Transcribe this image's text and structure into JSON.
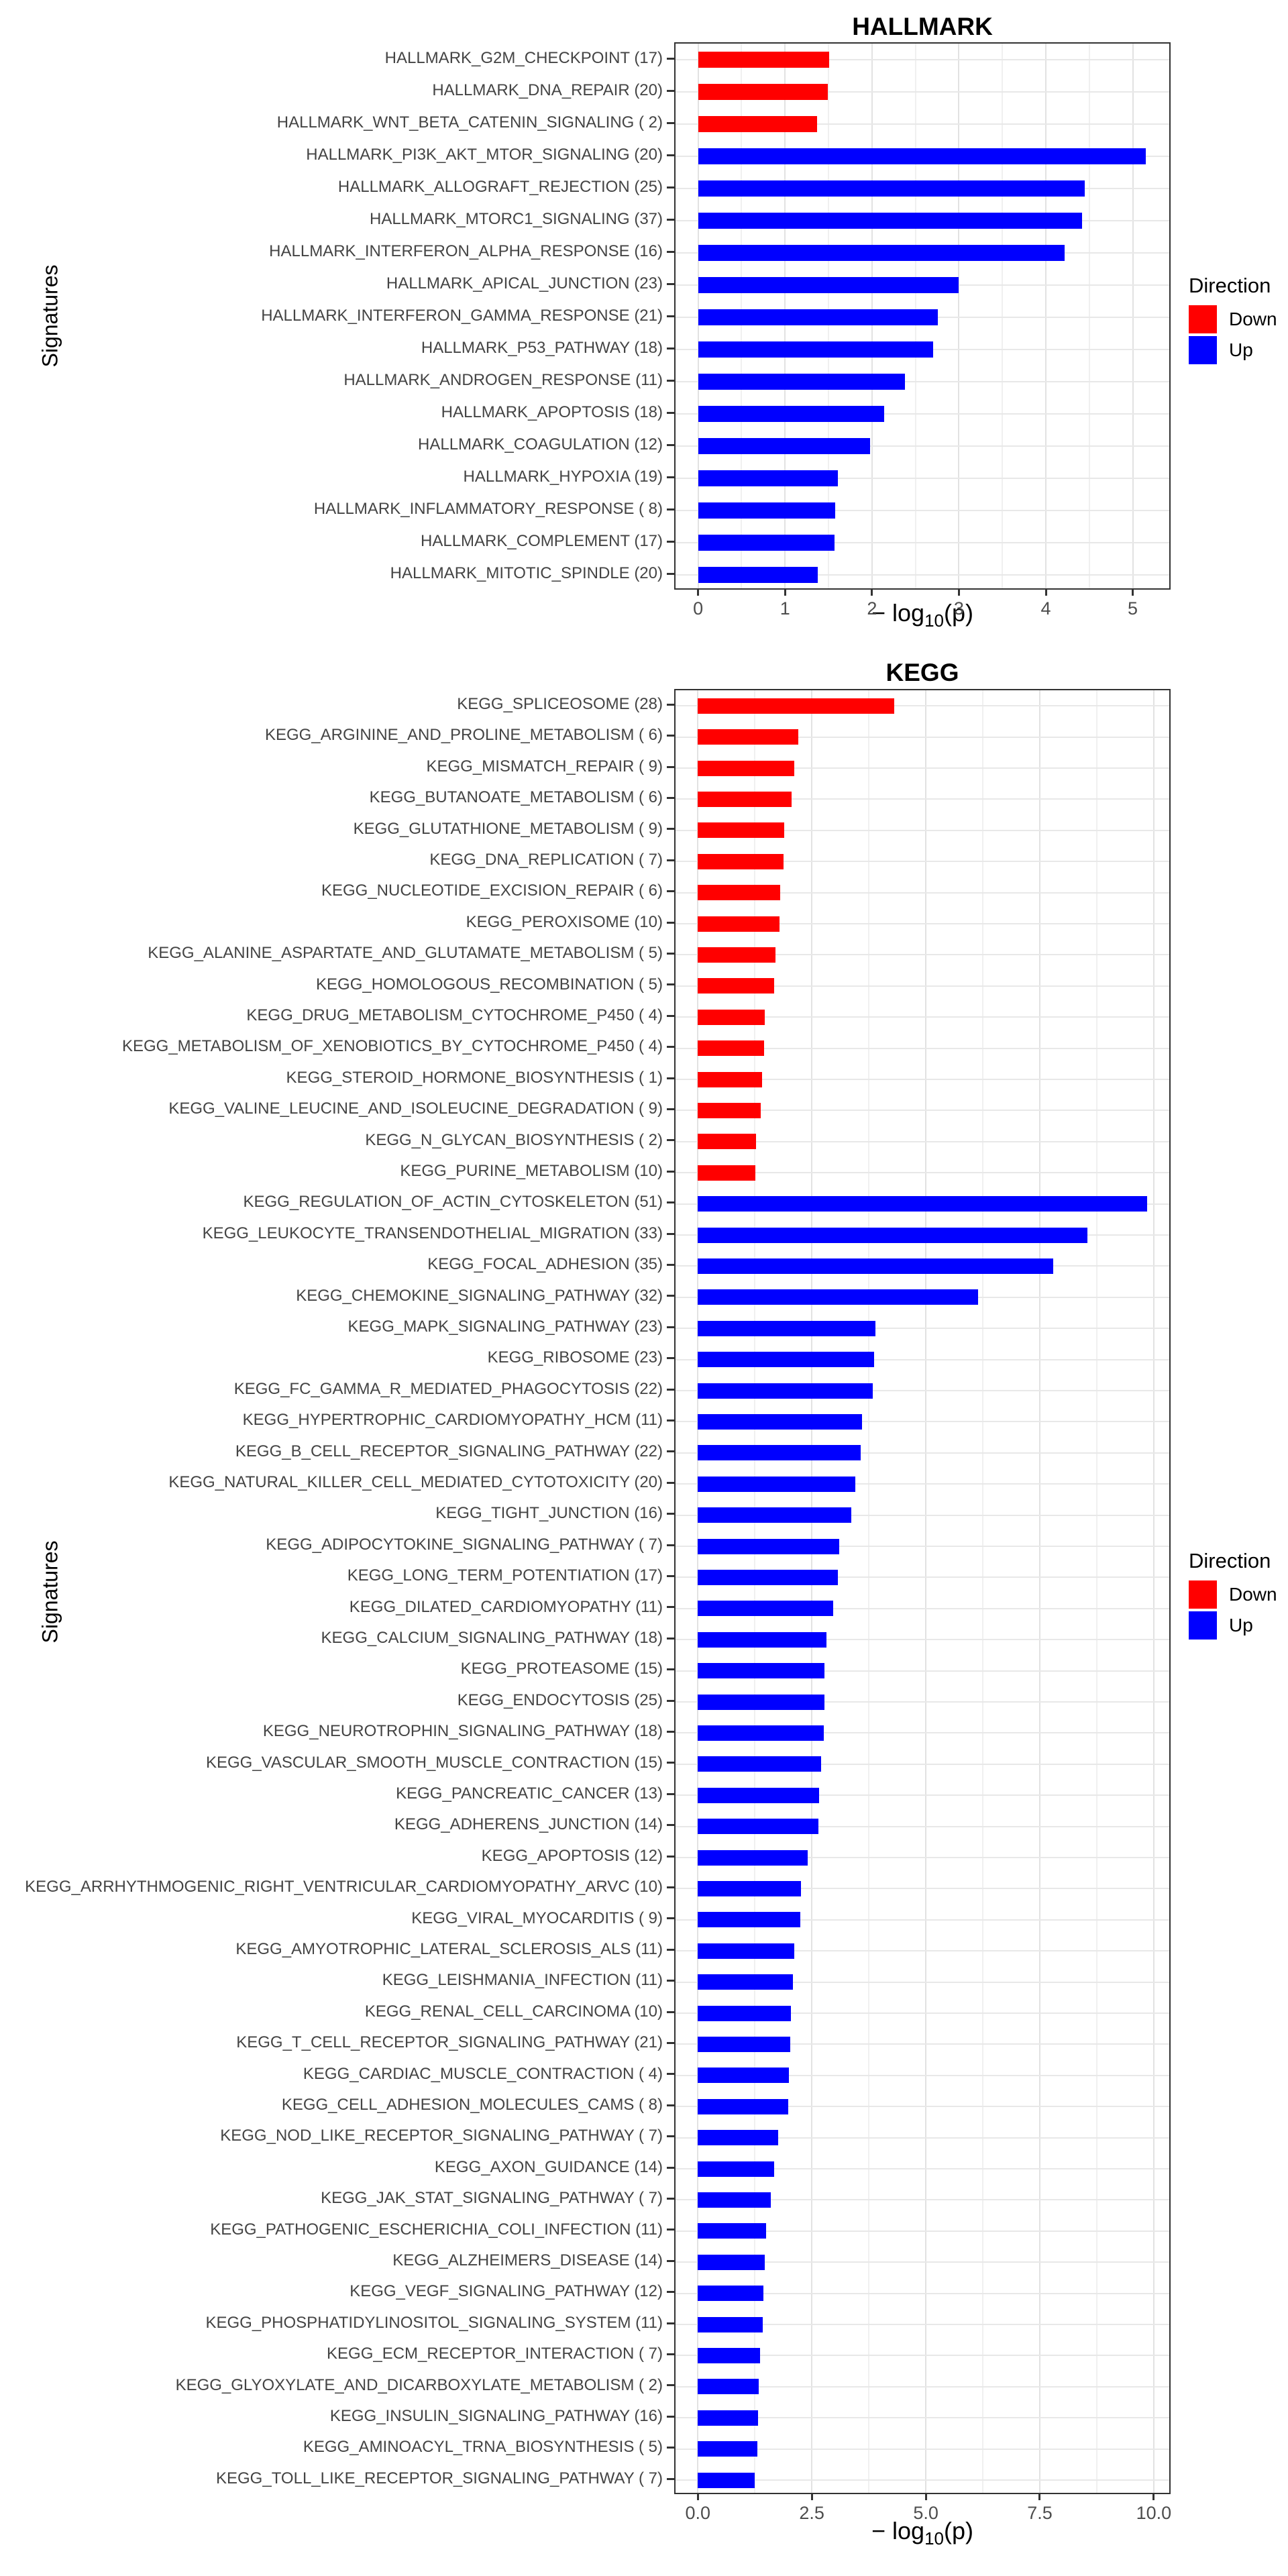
{
  "chart_data": [
    {
      "type": "bar",
      "orientation": "horizontal",
      "title": "HALLMARK",
      "ylabel": "Signatures",
      "xlabel": "-log10(p)",
      "xlabel_parts": {
        "pre": "− log",
        "sub": "10",
        "post": "(p)"
      },
      "xlim": [
        -0.26,
        5.42
      ],
      "grid": true,
      "x_ticks": [
        {
          "v": 0,
          "label": "0"
        },
        {
          "v": 1,
          "label": "1"
        },
        {
          "v": 2,
          "label": "2"
        },
        {
          "v": 3,
          "label": "3"
        },
        {
          "v": 4,
          "label": "4"
        },
        {
          "v": 5,
          "label": "5"
        }
      ],
      "x_minor": [
        0.5,
        1.5,
        2.5,
        3.5,
        4.5
      ],
      "legend": {
        "title": "Direction",
        "position": "right",
        "items": [
          {
            "label": "Down",
            "color": "#FF0000"
          },
          {
            "label": "Up",
            "color": "#0000FF"
          }
        ]
      },
      "bars": [
        {
          "label": "HALLMARK_G2M_CHECKPOINT (17)",
          "value": 1.51,
          "direction": "Down"
        },
        {
          "label": "HALLMARK_DNA_REPAIR (20)",
          "value": 1.49,
          "direction": "Down"
        },
        {
          "label": "HALLMARK_WNT_BETA_CATENIN_SIGNALING ( 2)",
          "value": 1.37,
          "direction": "Down"
        },
        {
          "label": "HALLMARK_PI3K_AKT_MTOR_SIGNALING (20)",
          "value": 5.15,
          "direction": "Up"
        },
        {
          "label": "HALLMARK_ALLOGRAFT_REJECTION (25)",
          "value": 4.45,
          "direction": "Up"
        },
        {
          "label": "HALLMARK_MTORC1_SIGNALING (37)",
          "value": 4.42,
          "direction": "Up"
        },
        {
          "label": "HALLMARK_INTERFERON_ALPHA_RESPONSE (16)",
          "value": 4.22,
          "direction": "Up"
        },
        {
          "label": "HALLMARK_APICAL_JUNCTION (23)",
          "value": 3.0,
          "direction": "Up"
        },
        {
          "label": "HALLMARK_INTERFERON_GAMMA_RESPONSE (21)",
          "value": 2.76,
          "direction": "Up"
        },
        {
          "label": "HALLMARK_P53_PATHWAY (18)",
          "value": 2.7,
          "direction": "Up"
        },
        {
          "label": "HALLMARK_ANDROGEN_RESPONSE (11)",
          "value": 2.38,
          "direction": "Up"
        },
        {
          "label": "HALLMARK_APOPTOSIS (18)",
          "value": 2.14,
          "direction": "Up"
        },
        {
          "label": "HALLMARK_COAGULATION (12)",
          "value": 1.98,
          "direction": "Up"
        },
        {
          "label": "HALLMARK_HYPOXIA (19)",
          "value": 1.61,
          "direction": "Up"
        },
        {
          "label": "HALLMARK_INFLAMMATORY_RESPONSE ( 8)",
          "value": 1.58,
          "direction": "Up"
        },
        {
          "label": "HALLMARK_COMPLEMENT (17)",
          "value": 1.57,
          "direction": "Up"
        },
        {
          "label": "HALLMARK_MITOTIC_SPINDLE (20)",
          "value": 1.38,
          "direction": "Up"
        }
      ]
    },
    {
      "type": "bar",
      "orientation": "horizontal",
      "title": "KEGG",
      "ylabel": "Signatures",
      "xlabel": "-log10(p)",
      "xlabel_parts": {
        "pre": "− log",
        "sub": "10",
        "post": "(p)"
      },
      "xlim": [
        -0.49,
        10.34
      ],
      "grid": true,
      "x_ticks": [
        {
          "v": 0,
          "label": "0.0"
        },
        {
          "v": 2.5,
          "label": "2.5"
        },
        {
          "v": 5,
          "label": "5.0"
        },
        {
          "v": 7.5,
          "label": "7.5"
        },
        {
          "v": 10,
          "label": "10.0"
        }
      ],
      "x_minor": [
        1.25,
        3.75,
        6.25,
        8.75
      ],
      "legend": {
        "title": "Direction",
        "position": "right",
        "items": [
          {
            "label": "Down",
            "color": "#FF0000"
          },
          {
            "label": "Up",
            "color": "#0000FF"
          }
        ]
      },
      "bars": [
        {
          "label": "KEGG_SPLICEOSOME (28)",
          "value": 4.3,
          "direction": "Down"
        },
        {
          "label": "KEGG_ARGININE_AND_PROLINE_METABOLISM ( 6)",
          "value": 2.2,
          "direction": "Down"
        },
        {
          "label": "KEGG_MISMATCH_REPAIR ( 9)",
          "value": 2.12,
          "direction": "Down"
        },
        {
          "label": "KEGG_BUTANOATE_METABOLISM ( 6)",
          "value": 2.06,
          "direction": "Down"
        },
        {
          "label": "KEGG_GLUTATHIONE_METABOLISM ( 9)",
          "value": 1.9,
          "direction": "Down"
        },
        {
          "label": "KEGG_DNA_REPLICATION ( 7)",
          "value": 1.88,
          "direction": "Down"
        },
        {
          "label": "KEGG_NUCLEOTIDE_EXCISION_REPAIR ( 6)",
          "value": 1.8,
          "direction": "Down"
        },
        {
          "label": "KEGG_PEROXISOME (10)",
          "value": 1.79,
          "direction": "Down"
        },
        {
          "label": "KEGG_ALANINE_ASPARTATE_AND_GLUTAMATE_METABOLISM ( 5)",
          "value": 1.71,
          "direction": "Down"
        },
        {
          "label": "KEGG_HOMOLOGOUS_RECOMBINATION ( 5)",
          "value": 1.68,
          "direction": "Down"
        },
        {
          "label": "KEGG_DRUG_METABOLISM_CYTOCHROME_P450 ( 4)",
          "value": 1.46,
          "direction": "Down"
        },
        {
          "label": "KEGG_METABOLISM_OF_XENOBIOTICS_BY_CYTOCHROME_P450 ( 4)",
          "value": 1.45,
          "direction": "Down"
        },
        {
          "label": "KEGG_STEROID_HORMONE_BIOSYNTHESIS ( 1)",
          "value": 1.41,
          "direction": "Down"
        },
        {
          "label": "KEGG_VALINE_LEUCINE_AND_ISOLEUCINE_DEGRADATION ( 9)",
          "value": 1.38,
          "direction": "Down"
        },
        {
          "label": "KEGG_N_GLYCAN_BIOSYNTHESIS ( 2)",
          "value": 1.28,
          "direction": "Down"
        },
        {
          "label": "KEGG_PURINE_METABOLISM (10)",
          "value": 1.26,
          "direction": "Down"
        },
        {
          "label": "KEGG_REGULATION_OF_ACTIN_CYTOSKELETON (51)",
          "value": 9.85,
          "direction": "Up"
        },
        {
          "label": "KEGG_LEUKOCYTE_TRANSENDOTHELIAL_MIGRATION (33)",
          "value": 8.55,
          "direction": "Up"
        },
        {
          "label": "KEGG_FOCAL_ADHESION (35)",
          "value": 7.8,
          "direction": "Up"
        },
        {
          "label": "KEGG_CHEMOKINE_SIGNALING_PATHWAY (32)",
          "value": 6.15,
          "direction": "Up"
        },
        {
          "label": "KEGG_MAPK_SIGNALING_PATHWAY (23)",
          "value": 3.9,
          "direction": "Up"
        },
        {
          "label": "KEGG_RIBOSOME (23)",
          "value": 3.86,
          "direction": "Up"
        },
        {
          "label": "KEGG_FC_GAMMA_R_MEDIATED_PHAGOCYTOSIS (22)",
          "value": 3.83,
          "direction": "Up"
        },
        {
          "label": "KEGG_HYPERTROPHIC_CARDIOMYOPATHY_HCM (11)",
          "value": 3.6,
          "direction": "Up"
        },
        {
          "label": "KEGG_B_CELL_RECEPTOR_SIGNALING_PATHWAY (22)",
          "value": 3.57,
          "direction": "Up"
        },
        {
          "label": "KEGG_NATURAL_KILLER_CELL_MEDIATED_CYTOTOXICITY (20)",
          "value": 3.45,
          "direction": "Up"
        },
        {
          "label": "KEGG_TIGHT_JUNCTION (16)",
          "value": 3.36,
          "direction": "Up"
        },
        {
          "label": "KEGG_ADIPOCYTOKINE_SIGNALING_PATHWAY ( 7)",
          "value": 3.1,
          "direction": "Up"
        },
        {
          "label": "KEGG_LONG_TERM_POTENTIATION (17)",
          "value": 3.07,
          "direction": "Up"
        },
        {
          "label": "KEGG_DILATED_CARDIOMYOPATHY (11)",
          "value": 2.97,
          "direction": "Up"
        },
        {
          "label": "KEGG_CALCIUM_SIGNALING_PATHWAY (18)",
          "value": 2.82,
          "direction": "Up"
        },
        {
          "label": "KEGG_PROTEASOME (15)",
          "value": 2.78,
          "direction": "Up"
        },
        {
          "label": "KEGG_ENDOCYTOSIS (25)",
          "value": 2.77,
          "direction": "Up"
        },
        {
          "label": "KEGG_NEUROTROPHIN_SIGNALING_PATHWAY (18)",
          "value": 2.76,
          "direction": "Up"
        },
        {
          "label": "KEGG_VASCULAR_SMOOTH_MUSCLE_CONTRACTION (15)",
          "value": 2.7,
          "direction": "Up"
        },
        {
          "label": "KEGG_PANCREATIC_CANCER (13)",
          "value": 2.66,
          "direction": "Up"
        },
        {
          "label": "KEGG_ADHERENS_JUNCTION (14)",
          "value": 2.64,
          "direction": "Up"
        },
        {
          "label": "KEGG_APOPTOSIS (12)",
          "value": 2.41,
          "direction": "Up"
        },
        {
          "label": "KEGG_ARRHYTHMOGENIC_RIGHT_VENTRICULAR_CARDIOMYOPATHY_ARVC (10)",
          "value": 2.26,
          "direction": "Up"
        },
        {
          "label": "KEGG_VIRAL_MYOCARDITIS ( 9)",
          "value": 2.25,
          "direction": "Up"
        },
        {
          "label": "KEGG_AMYOTROPHIC_LATERAL_SCLEROSIS_ALS (11)",
          "value": 2.12,
          "direction": "Up"
        },
        {
          "label": "KEGG_LEISHMANIA_INFECTION (11)",
          "value": 2.09,
          "direction": "Up"
        },
        {
          "label": "KEGG_RENAL_CELL_CARCINOMA (10)",
          "value": 2.04,
          "direction": "Up"
        },
        {
          "label": "KEGG_T_CELL_RECEPTOR_SIGNALING_PATHWAY (21)",
          "value": 2.02,
          "direction": "Up"
        },
        {
          "label": "KEGG_CARDIAC_MUSCLE_CONTRACTION ( 4)",
          "value": 2.0,
          "direction": "Up"
        },
        {
          "label": "KEGG_CELL_ADHESION_MOLECULES_CAMS ( 8)",
          "value": 1.98,
          "direction": "Up"
        },
        {
          "label": "KEGG_NOD_LIKE_RECEPTOR_SIGNALING_PATHWAY ( 7)",
          "value": 1.76,
          "direction": "Up"
        },
        {
          "label": "KEGG_AXON_GUIDANCE (14)",
          "value": 1.67,
          "direction": "Up"
        },
        {
          "label": "KEGG_JAK_STAT_SIGNALING_PATHWAY ( 7)",
          "value": 1.6,
          "direction": "Up"
        },
        {
          "label": "KEGG_PATHOGENIC_ESCHERICHIA_COLI_INFECTION (11)",
          "value": 1.5,
          "direction": "Up"
        },
        {
          "label": "KEGG_ALZHEIMERS_DISEASE (14)",
          "value": 1.46,
          "direction": "Up"
        },
        {
          "label": "KEGG_VEGF_SIGNALING_PATHWAY (12)",
          "value": 1.44,
          "direction": "Up"
        },
        {
          "label": "KEGG_PHOSPHATIDYLINOSITOL_SIGNALING_SYSTEM (11)",
          "value": 1.43,
          "direction": "Up"
        },
        {
          "label": "KEGG_ECM_RECEPTOR_INTERACTION ( 7)",
          "value": 1.36,
          "direction": "Up"
        },
        {
          "label": "KEGG_GLYOXYLATE_AND_DICARBOXYLATE_METABOLISM ( 2)",
          "value": 1.34,
          "direction": "Up"
        },
        {
          "label": "KEGG_INSULIN_SIGNALING_PATHWAY (16)",
          "value": 1.32,
          "direction": "Up"
        },
        {
          "label": "KEGG_AMINOACYL_TRNA_BIOSYNTHESIS ( 5)",
          "value": 1.3,
          "direction": "Up"
        },
        {
          "label": "KEGG_TOLL_LIKE_RECEPTOR_SIGNALING_PATHWAY ( 7)",
          "value": 1.25,
          "direction": "Up"
        }
      ]
    }
  ]
}
